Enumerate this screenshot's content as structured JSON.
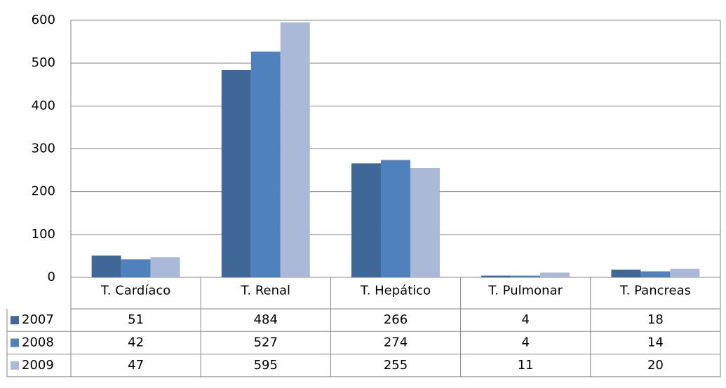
{
  "chart_data": {
    "type": "bar",
    "categories": [
      "T. Cardíaco",
      "T. Renal",
      "T. Hepático",
      "T. Pulmonar",
      "T. Pancreas"
    ],
    "series": [
      {
        "name": "2007",
        "color": "#3f6898",
        "values": [
          51,
          484,
          266,
          4,
          18
        ]
      },
      {
        "name": "2008",
        "color": "#4f81bd",
        "values": [
          42,
          527,
          274,
          4,
          14
        ]
      },
      {
        "name": "2009",
        "color": "#aab9d8",
        "values": [
          47,
          595,
          255,
          11,
          20
        ]
      }
    ],
    "ylim": [
      0,
      600
    ],
    "yticks": [
      0,
      100,
      200,
      300,
      400,
      500,
      600
    ],
    "grid": true
  }
}
